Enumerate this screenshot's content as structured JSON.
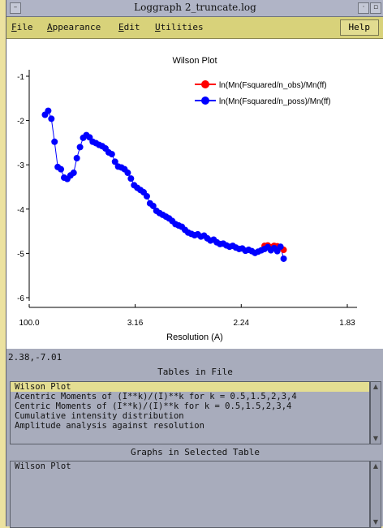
{
  "window": {
    "title": "Loggraph 2_truncate.log"
  },
  "menubar": {
    "items": [
      {
        "u": "F",
        "rest": "ile"
      },
      {
        "u": "A",
        "rest": "ppearance"
      },
      {
        "u": "E",
        "rest": "dit"
      },
      {
        "u": "U",
        "rest": "tilities"
      }
    ],
    "help": "Help"
  },
  "chart_data": {
    "type": "line",
    "title": "Wilson Plot",
    "xlabel": "Resolution (A)",
    "ylabel": "",
    "x_tick_labels": [
      "100.0",
      "3.16",
      "2.24",
      "1.83"
    ],
    "x_ticks_s": [
      0.0001,
      0.1,
      0.2,
      0.3
    ],
    "y_ticks": [
      -1,
      -2,
      -3,
      -4,
      -5,
      -6
    ],
    "ylim": [
      -6,
      -1
    ],
    "xlim_s": [
      0.0001,
      0.3
    ],
    "legend_position": "top-right",
    "series": [
      {
        "name": "ln(Mn(Fsquared/n_obs)/Mn(ff)",
        "color": "#ff0000",
        "points": [
          [
            0.222,
            -4.83
          ],
          [
            0.225,
            -4.82
          ],
          [
            0.228,
            -4.86
          ],
          [
            0.231,
            -4.83
          ],
          [
            0.234,
            -4.84
          ],
          [
            0.237,
            -4.86
          ],
          [
            0.24,
            -4.92
          ]
        ]
      },
      {
        "name": "ln(Mn(Fsquared/n_poss)/Mn(ff)",
        "color": "#0000ff",
        "points": [
          [
            0.015,
            -1.87
          ],
          [
            0.018,
            -1.78
          ],
          [
            0.021,
            -1.96
          ],
          [
            0.024,
            -2.48
          ],
          [
            0.027,
            -3.05
          ],
          [
            0.03,
            -3.1
          ],
          [
            0.033,
            -3.29
          ],
          [
            0.036,
            -3.32
          ],
          [
            0.039,
            -3.24
          ],
          [
            0.042,
            -3.18
          ],
          [
            0.045,
            -2.85
          ],
          [
            0.048,
            -2.6
          ],
          [
            0.051,
            -2.39
          ],
          [
            0.054,
            -2.33
          ],
          [
            0.057,
            -2.38
          ],
          [
            0.06,
            -2.48
          ],
          [
            0.063,
            -2.51
          ],
          [
            0.066,
            -2.55
          ],
          [
            0.069,
            -2.58
          ],
          [
            0.072,
            -2.63
          ],
          [
            0.075,
            -2.72
          ],
          [
            0.078,
            -2.76
          ],
          [
            0.081,
            -2.93
          ],
          [
            0.084,
            -3.04
          ],
          [
            0.087,
            -3.06
          ],
          [
            0.09,
            -3.1
          ],
          [
            0.093,
            -3.18
          ],
          [
            0.096,
            -3.31
          ],
          [
            0.099,
            -3.46
          ],
          [
            0.102,
            -3.52
          ],
          [
            0.105,
            -3.57
          ],
          [
            0.108,
            -3.62
          ],
          [
            0.111,
            -3.71
          ],
          [
            0.114,
            -3.87
          ],
          [
            0.117,
            -3.93
          ],
          [
            0.12,
            -4.04
          ],
          [
            0.123,
            -4.09
          ],
          [
            0.126,
            -4.13
          ],
          [
            0.129,
            -4.17
          ],
          [
            0.132,
            -4.21
          ],
          [
            0.135,
            -4.27
          ],
          [
            0.138,
            -4.34
          ],
          [
            0.141,
            -4.37
          ],
          [
            0.144,
            -4.4
          ],
          [
            0.147,
            -4.47
          ],
          [
            0.15,
            -4.53
          ],
          [
            0.153,
            -4.56
          ],
          [
            0.156,
            -4.59
          ],
          [
            0.159,
            -4.57
          ],
          [
            0.162,
            -4.62
          ],
          [
            0.165,
            -4.6
          ],
          [
            0.168,
            -4.66
          ],
          [
            0.171,
            -4.71
          ],
          [
            0.174,
            -4.69
          ],
          [
            0.177,
            -4.75
          ],
          [
            0.18,
            -4.79
          ],
          [
            0.183,
            -4.78
          ],
          [
            0.186,
            -4.82
          ],
          [
            0.189,
            -4.85
          ],
          [
            0.192,
            -4.83
          ],
          [
            0.195,
            -4.87
          ],
          [
            0.198,
            -4.9
          ],
          [
            0.201,
            -4.89
          ],
          [
            0.204,
            -4.94
          ],
          [
            0.207,
            -4.92
          ],
          [
            0.21,
            -4.95
          ],
          [
            0.213,
            -4.99
          ],
          [
            0.216,
            -4.96
          ],
          [
            0.219,
            -4.93
          ],
          [
            0.222,
            -4.9
          ],
          [
            0.225,
            -4.86
          ],
          [
            0.228,
            -4.93
          ],
          [
            0.231,
            -4.88
          ],
          [
            0.234,
            -4.95
          ],
          [
            0.237,
            -4.85
          ],
          [
            0.24,
            -5.12
          ]
        ]
      }
    ]
  },
  "status": {
    "coords": "2.38,-7.01"
  },
  "tables": {
    "title": "Tables in File",
    "items": [
      "Wilson Plot",
      "Acentric Moments of (I**k)/(I)**k for k = 0.5,1.5,2,3,4",
      "Centric Moments of (I**k)/(I)**k for k = 0.5,1.5,2,3,4",
      "Cumulative intensity distribution",
      "Amplitude analysis against resolution"
    ]
  },
  "graphs": {
    "title": "Graphs in Selected Table",
    "items": [
      "Wilson Plot"
    ]
  }
}
